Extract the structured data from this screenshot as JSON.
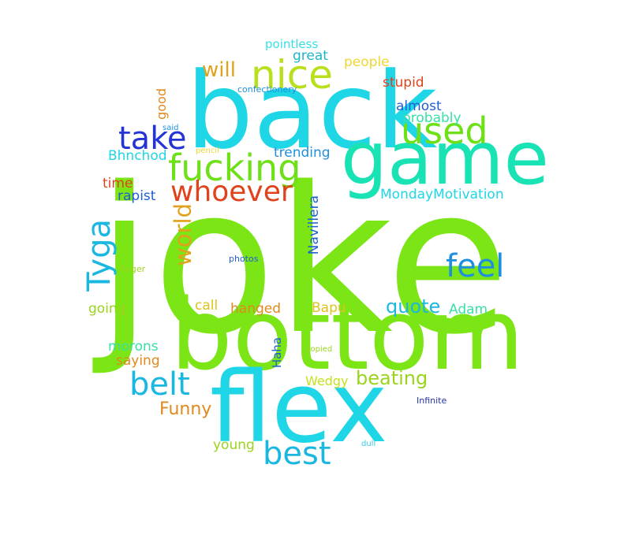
{
  "words": [
    {
      "text": "joke",
      "color": "#7ce516"
    },
    {
      "text": "back",
      "color": "#1fd6e6"
    },
    {
      "text": "bottom",
      "color": "#7ce516"
    },
    {
      "text": "game",
      "color": "#19e3b4"
    },
    {
      "text": "flex",
      "color": "#1fd6e6"
    },
    {
      "text": "nice",
      "color": "#b8e01c"
    },
    {
      "text": "used",
      "color": "#6ee018"
    },
    {
      "text": "fucking",
      "color": "#6ee018"
    },
    {
      "text": "take",
      "color": "#2534d4"
    },
    {
      "text": "whoever",
      "color": "#e0421c"
    },
    {
      "text": "Tyga",
      "color": "#1ab7e0"
    },
    {
      "text": "world",
      "color": "#e0a21c"
    },
    {
      "text": "feel",
      "color": "#1e8fe0"
    },
    {
      "text": "belt",
      "color": "#1ab7e0"
    },
    {
      "text": "best",
      "color": "#1ab7e0"
    },
    {
      "text": "quote",
      "color": "#1ab7e0"
    },
    {
      "text": "beating",
      "color": "#9ad41c"
    },
    {
      "text": "Funny",
      "color": "#e0891c"
    },
    {
      "text": "will",
      "color": "#e0a21c"
    },
    {
      "text": "pointless",
      "color": "#38e0e6"
    },
    {
      "text": "great",
      "color": "#1fb5c9"
    },
    {
      "text": "people",
      "color": "#f0d630"
    },
    {
      "text": "stupid",
      "color": "#e0421c"
    },
    {
      "text": "confectionery",
      "color": "#1e8fe0"
    },
    {
      "text": "almost",
      "color": "#1e5fd4"
    },
    {
      "text": "probably",
      "color": "#38e0a6"
    },
    {
      "text": "good",
      "color": "#e0891c"
    },
    {
      "text": "said",
      "color": "#1e8fe0"
    },
    {
      "text": "pencil",
      "color": "#f0d630"
    },
    {
      "text": "Bhnchod",
      "color": "#1fd6e6"
    },
    {
      "text": "trending",
      "color": "#1e8fe0"
    },
    {
      "text": "time",
      "color": "#e0421c"
    },
    {
      "text": "rapist",
      "color": "#1e5fd4"
    },
    {
      "text": "MondayMotivation",
      "color": "#1fd6e6"
    },
    {
      "text": "Navillera",
      "color": "#1e5fd4"
    },
    {
      "text": "photos",
      "color": "#1e5fd4"
    },
    {
      "text": "Roger",
      "color": "#9ad41c"
    },
    {
      "text": "call",
      "color": "#e0c21c"
    },
    {
      "text": "hanged",
      "color": "#e0891c"
    },
    {
      "text": "Bapu",
      "color": "#e0c21c"
    },
    {
      "text": "Adam",
      "color": "#38e0a6"
    },
    {
      "text": "going",
      "color": "#9ad41c"
    },
    {
      "text": "morons",
      "color": "#38e0a6"
    },
    {
      "text": "saying",
      "color": "#e0891c"
    },
    {
      "text": "Haha",
      "color": "#1e5fd4"
    },
    {
      "text": "copied",
      "color": "#9ad41c"
    },
    {
      "text": "Wedgy",
      "color": "#c9e01c"
    },
    {
      "text": "Infinite",
      "color": "#2534a8"
    },
    {
      "text": "young",
      "color": "#9ad41c"
    },
    {
      "text": "dull",
      "color": "#38c9e6"
    }
  ]
}
